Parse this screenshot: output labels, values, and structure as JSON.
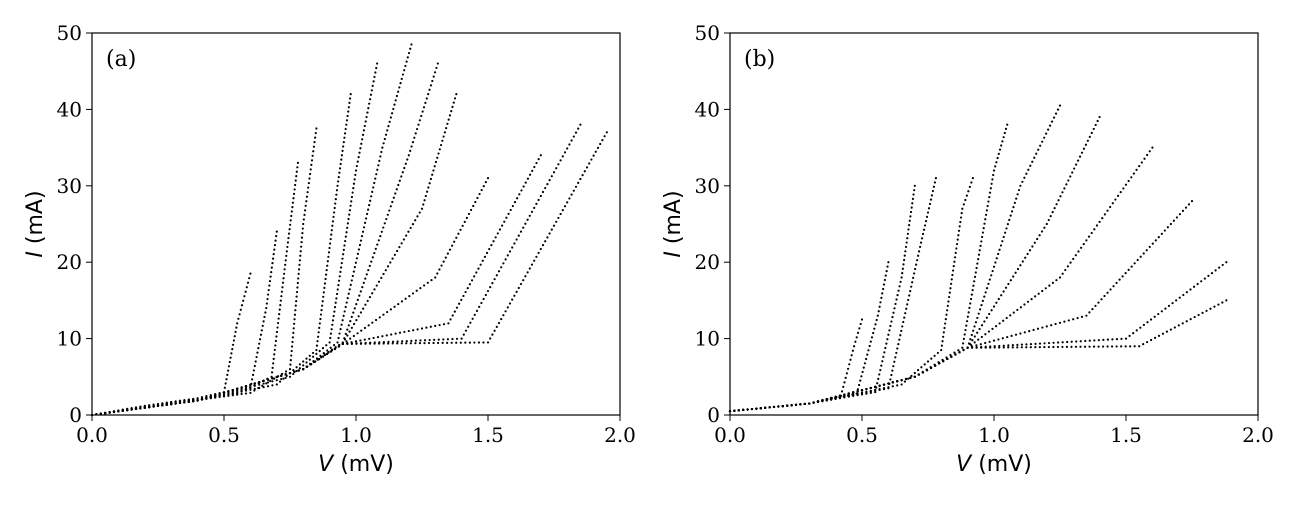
{
  "chart_data": [
    {
      "type": "scatter",
      "panel_label": "(a)",
      "xlabel": {
        "var": "V",
        "unit": " (mV)"
      },
      "ylabel": {
        "var": "I",
        "unit": " (mA)"
      },
      "xlim": [
        0,
        2.0
      ],
      "ylim": [
        0,
        50
      ],
      "xticks": [
        0,
        0.5,
        1.0,
        1.5,
        2.0
      ],
      "xtick_labels": [
        "0.0",
        "0.5",
        "1.0",
        "1.5",
        "2.0"
      ],
      "yticks": [
        0,
        10,
        20,
        30,
        40,
        50
      ],
      "ytick_labels": [
        "0",
        "10",
        "20",
        "30",
        "40",
        "50"
      ],
      "grid": false,
      "marker_color": "#000000",
      "series": [
        {
          "x": [
            0,
            0.2,
            0.4,
            0.5,
            0.55,
            0.6
          ],
          "y": [
            0,
            1.2,
            2.2,
            3.0,
            12,
            18.5
          ]
        },
        {
          "x": [
            0,
            0.3,
            0.5,
            0.6,
            0.66,
            0.7
          ],
          "y": [
            0,
            1.6,
            2.6,
            3.5,
            14,
            24
          ]
        },
        {
          "x": [
            0,
            0.3,
            0.55,
            0.68,
            0.74,
            0.78
          ],
          "y": [
            0,
            1.6,
            2.8,
            5,
            22,
            33
          ]
        },
        {
          "x": [
            0,
            0.3,
            0.6,
            0.75,
            0.8,
            0.85
          ],
          "y": [
            0,
            1.5,
            2.9,
            6,
            25,
            37.5
          ]
        },
        {
          "x": [
            0,
            0.4,
            0.7,
            0.85,
            0.93,
            0.98
          ],
          "y": [
            0,
            1.9,
            4,
            8.5,
            30,
            42
          ]
        },
        {
          "x": [
            0,
            0.4,
            0.75,
            0.9,
            1.0,
            1.08
          ],
          "y": [
            0,
            1.9,
            5,
            9.5,
            32,
            46
          ]
        },
        {
          "x": [
            0,
            0.4,
            0.8,
            0.93,
            1.1,
            1.21
          ],
          "y": [
            0,
            1.9,
            6,
            9.5,
            35,
            48.5
          ]
        },
        {
          "x": [
            0,
            0.4,
            0.8,
            0.95,
            1.2,
            1.31
          ],
          "y": [
            0,
            1.9,
            6,
            9.5,
            34,
            46
          ]
        },
        {
          "x": [
            0,
            0.4,
            0.8,
            0.95,
            1.25,
            1.38
          ],
          "y": [
            0,
            1.9,
            6,
            9.4,
            27,
            42
          ]
        },
        {
          "x": [
            0,
            0.4,
            0.8,
            0.95,
            1.3,
            1.5
          ],
          "y": [
            0,
            1.9,
            6,
            9.3,
            18,
            31
          ]
        },
        {
          "x": [
            0,
            0.4,
            0.8,
            0.95,
            1.35,
            1.7
          ],
          "y": [
            0,
            1.9,
            6,
            9.3,
            12,
            34
          ]
        },
        {
          "x": [
            0,
            0.4,
            0.8,
            0.95,
            1.4,
            1.85
          ],
          "y": [
            0,
            1.9,
            6,
            9.3,
            10,
            38
          ]
        },
        {
          "x": [
            0,
            0.4,
            0.8,
            0.95,
            1.5,
            1.95
          ],
          "y": [
            0,
            1.9,
            6,
            9.3,
            9.5,
            37
          ]
        }
      ]
    },
    {
      "type": "scatter",
      "panel_label": "(b)",
      "xlabel": {
        "var": "V",
        "unit": " (mV)"
      },
      "ylabel": {
        "var": "I",
        "unit": " (mA)"
      },
      "xlim": [
        0,
        2.0
      ],
      "ylim": [
        0,
        50
      ],
      "xticks": [
        0,
        0.5,
        1.0,
        1.5,
        2.0
      ],
      "xtick_labels": [
        "0.0",
        "0.5",
        "1.0",
        "1.5",
        "2.0"
      ],
      "yticks": [
        0,
        10,
        20,
        30,
        40,
        50
      ],
      "ytick_labels": [
        "0",
        "10",
        "20",
        "30",
        "40",
        "50"
      ],
      "grid": false,
      "marker_color": "#000000",
      "series": [
        {
          "x": [
            0,
            0.3,
            0.42,
            0.47,
            0.5
          ],
          "y": [
            0.5,
            1.5,
            2.5,
            9,
            12.5
          ]
        },
        {
          "x": [
            0,
            0.3,
            0.48,
            0.56,
            0.6
          ],
          "y": [
            0.5,
            1.5,
            2.8,
            13,
            20
          ]
        },
        {
          "x": [
            0,
            0.3,
            0.55,
            0.65,
            0.7
          ],
          "y": [
            0.5,
            1.5,
            3,
            18,
            30
          ]
        },
        {
          "x": [
            0,
            0.3,
            0.6,
            0.72,
            0.78
          ],
          "y": [
            0.5,
            1.5,
            3.5,
            22,
            31
          ]
        },
        {
          "x": [
            0,
            0.3,
            0.65,
            0.8,
            0.88,
            0.92
          ],
          "y": [
            0.5,
            1.5,
            4,
            8.5,
            27,
            31
          ]
        },
        {
          "x": [
            0,
            0.3,
            0.7,
            0.88,
            1.0,
            1.05
          ],
          "y": [
            0.5,
            1.5,
            5,
            8.8,
            32,
            38
          ]
        },
        {
          "x": [
            0,
            0.3,
            0.7,
            0.9,
            1.1,
            1.25
          ],
          "y": [
            0.5,
            1.5,
            5,
            8.8,
            30,
            40.5
          ]
        },
        {
          "x": [
            0,
            0.3,
            0.7,
            0.9,
            1.2,
            1.4
          ],
          "y": [
            0.5,
            1.5,
            5,
            8.8,
            25,
            39
          ]
        },
        {
          "x": [
            0,
            0.3,
            0.7,
            0.9,
            1.25,
            1.6
          ],
          "y": [
            0.5,
            1.5,
            5,
            8.8,
            18,
            35
          ]
        },
        {
          "x": [
            0,
            0.3,
            0.7,
            0.9,
            1.35,
            1.75
          ],
          "y": [
            0.5,
            1.5,
            5,
            8.8,
            13,
            28
          ]
        },
        {
          "x": [
            0,
            0.3,
            0.7,
            0.9,
            1.5,
            1.88
          ],
          "y": [
            0.5,
            1.5,
            5,
            8.8,
            10,
            20
          ]
        },
        {
          "x": [
            0,
            0.3,
            0.7,
            0.9,
            1.55,
            1.88
          ],
          "y": [
            0.5,
            1.5,
            5,
            8.8,
            9,
            15
          ]
        }
      ]
    }
  ]
}
